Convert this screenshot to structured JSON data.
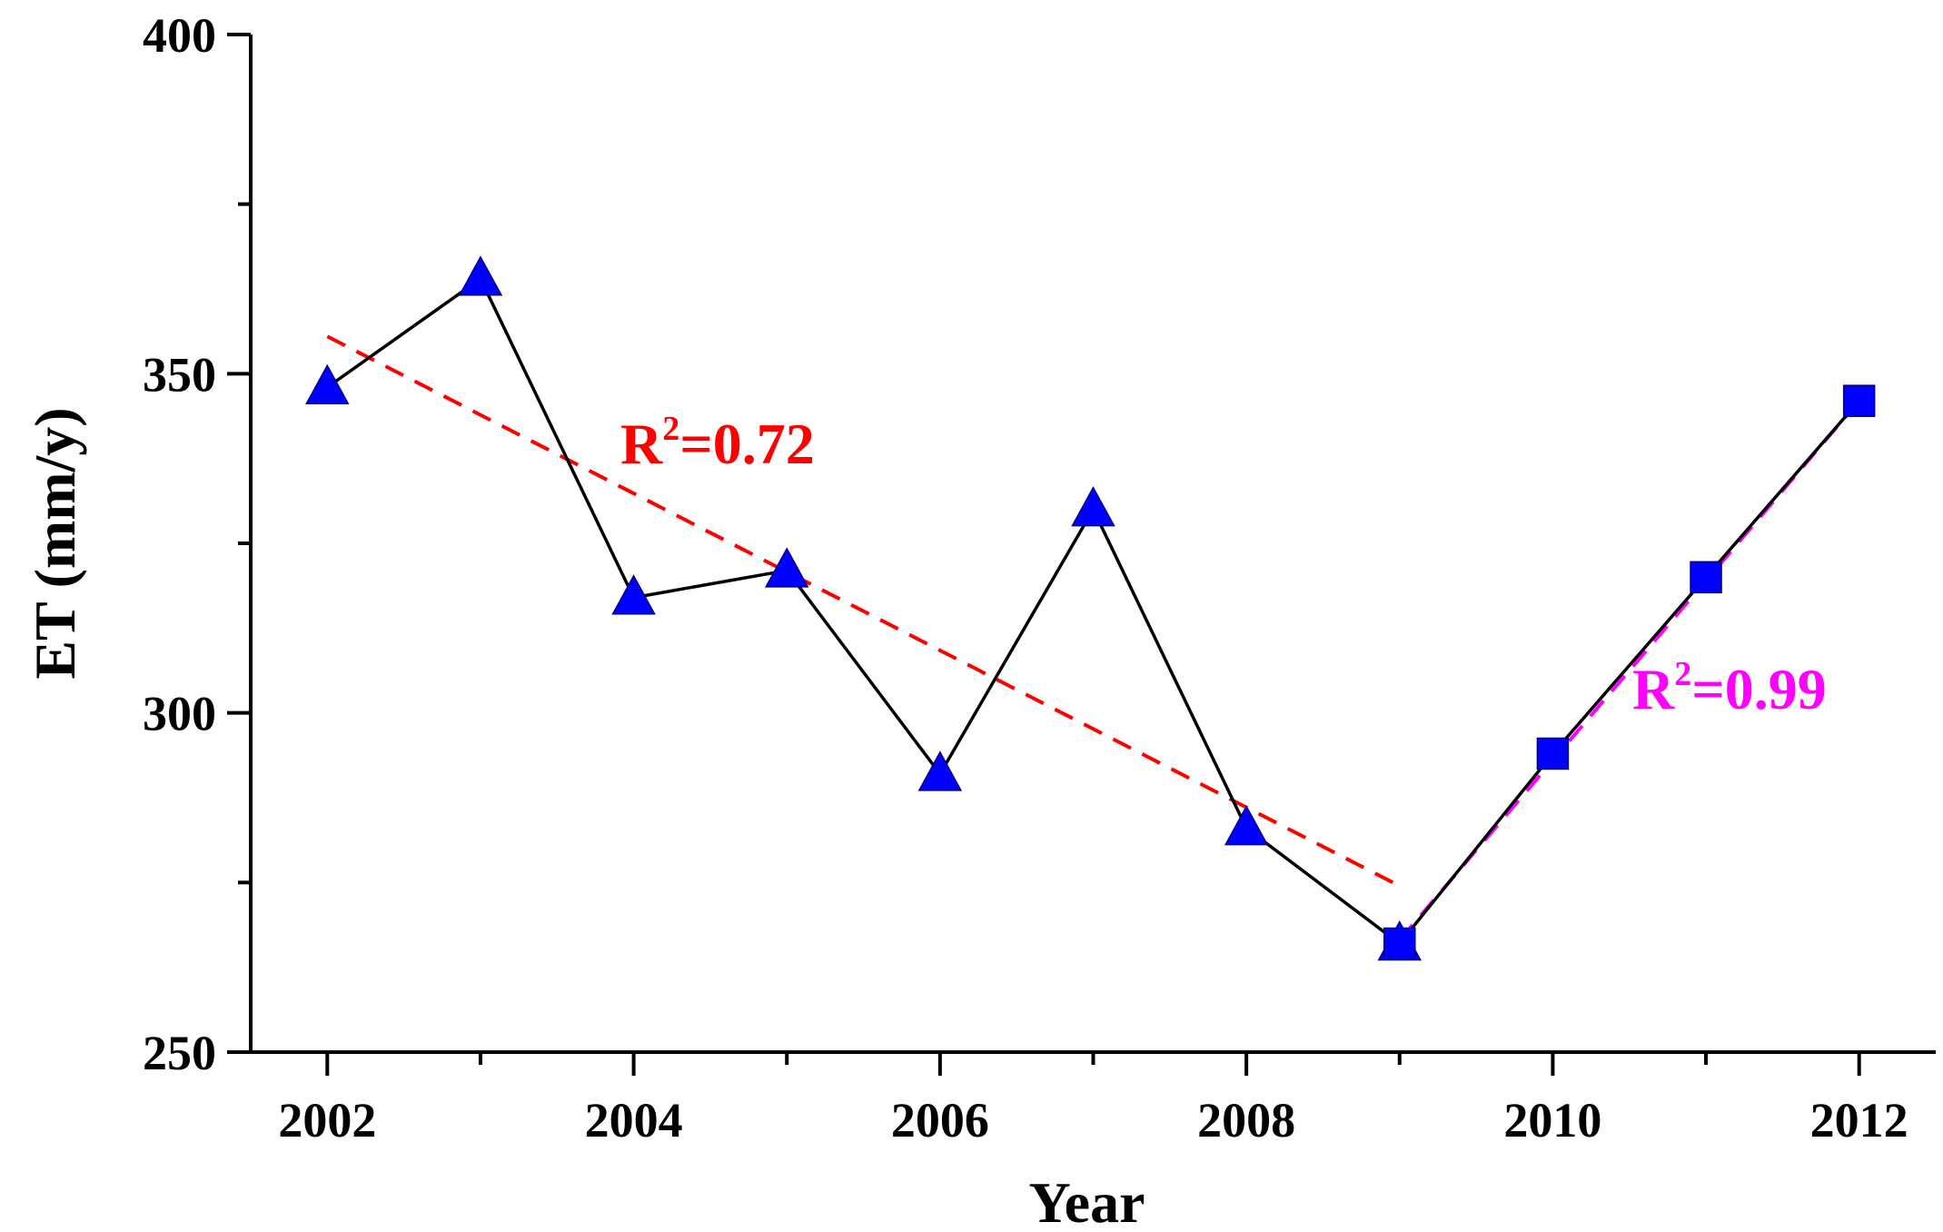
{
  "chart_data": {
    "type": "line",
    "title": "",
    "xlabel": "Year",
    "ylabel": "ET (mm/y)",
    "xlim": [
      2001.5,
      2012.5
    ],
    "ylim": [
      250,
      400
    ],
    "xticks": [
      2002,
      2004,
      2006,
      2008,
      2010,
      2012
    ],
    "yticks": [
      250,
      300,
      350,
      400
    ],
    "x_tick_labels": [
      "2002",
      "2004",
      "2006",
      "2008",
      "2010",
      "2012"
    ],
    "y_tick_labels": [
      "250",
      "300",
      "350",
      "400"
    ],
    "y_minor_ticks": [
      275,
      325,
      375
    ],
    "series": [
      {
        "name": "ET (triangle markers)",
        "marker": "triangle",
        "color": "#0000ff",
        "x": [
          2002,
          2003,
          2004,
          2005,
          2006,
          2007,
          2008,
          2009
        ],
        "values": [
          348,
          364,
          317,
          321,
          291,
          330,
          283,
          266
        ]
      },
      {
        "name": "ET (square markers)",
        "marker": "square",
        "color": "#0000ff",
        "x": [
          2009,
          2010,
          2011,
          2012
        ],
        "values": [
          266,
          294,
          320,
          346
        ]
      }
    ],
    "connecting_line_color": "#000000",
    "trendlines": [
      {
        "name": "trend 2002-2009",
        "color": "#ff0000",
        "style": "dashed",
        "x": [
          2002,
          2009
        ],
        "values": [
          355.5,
          274.5
        ],
        "label_prefix": "R",
        "label_sup": "2",
        "label_value": "=0.72"
      },
      {
        "name": "trend 2009-2012",
        "color": "#ff00ff",
        "style": "dashed",
        "x": [
          2009,
          2012
        ],
        "values": [
          266.5,
          346
        ],
        "label_prefix": "R",
        "label_sup": "2",
        "label_value": "=0.99"
      }
    ]
  }
}
